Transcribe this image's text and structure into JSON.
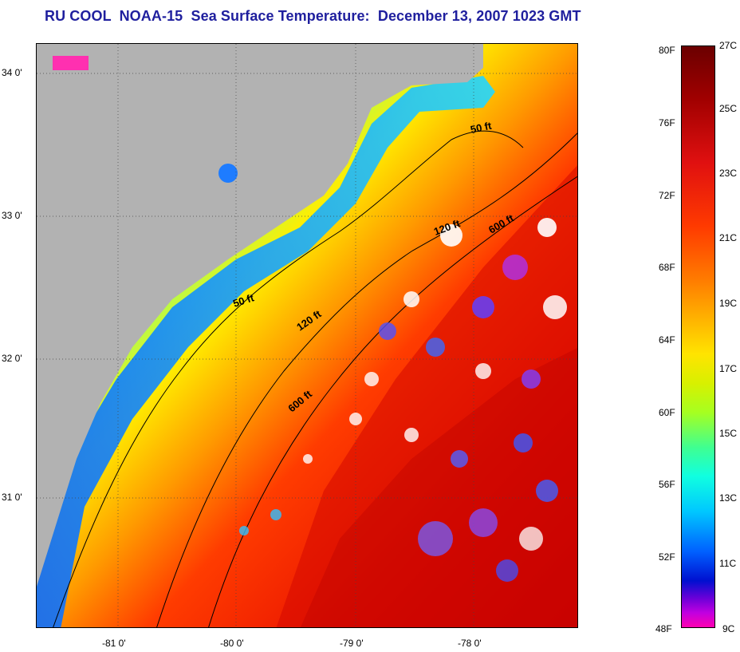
{
  "title": "RU COOL  NOAA-15  Sea Surface Temperature:  December 13, 2007 1023 GMT",
  "lat_labels": [
    "34 0'",
    "33 0'",
    "32 0'",
    "31 0'"
  ],
  "lon_labels": [
    "-81 0'",
    "-80 0'",
    "-79 0'",
    "-78 0'"
  ],
  "isobaths": {
    "ft50": "50 ft",
    "ft120": "120 ft",
    "ft600": "600 ft"
  },
  "colorbar": {
    "fahrenheit": [
      "80F",
      "76F",
      "72F",
      "68F",
      "64F",
      "60F",
      "56F",
      "52F",
      "48F"
    ],
    "celsius": [
      "27C",
      "25C",
      "23C",
      "21C",
      "19C",
      "17C",
      "15C",
      "13C",
      "11C",
      "9C"
    ]
  },
  "colors": {
    "title": "#1f1f9e",
    "land": "#b2b2b2"
  }
}
